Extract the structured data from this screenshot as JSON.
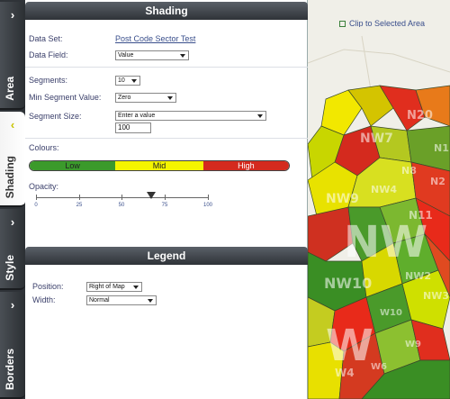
{
  "tabs": [
    {
      "label": "Area",
      "active": false
    },
    {
      "label": "Shading",
      "active": true
    },
    {
      "label": "Style",
      "active": false
    },
    {
      "label": "Borders",
      "active": false
    }
  ],
  "shading": {
    "title": "Shading",
    "dataset_label": "Data Set:",
    "dataset_value": "Post Code Sector Test",
    "datafield_label": "Data Field:",
    "datafield_value": "Value",
    "segments_label": "Segments:",
    "segments_value": "10",
    "min_segment_label": "Min Segment Value:",
    "min_segment_value": "Zero",
    "segment_size_label": "Segment Size:",
    "segment_size_select": "Enter a value",
    "segment_size_value": "100",
    "colours_label": "Colours:",
    "colours": {
      "low": "Low",
      "mid": "Mid",
      "high": "High",
      "low_color": "#3b9a2b",
      "mid_color": "#f5f500",
      "high_color": "#d42a1e"
    },
    "opacity_label": "Opacity:",
    "opacity_ticks": [
      "0",
      "25",
      "50",
      "75",
      "100"
    ],
    "opacity_value": 67
  },
  "legend": {
    "title": "Legend",
    "position_label": "Position:",
    "position_value": "Right of Map",
    "width_label": "Width:",
    "width_value": "Normal"
  },
  "map": {
    "clip_label": "Clip to Selected Area",
    "labels": [
      "N20",
      "NW7",
      "N8",
      "NW9",
      "NW4",
      "NW",
      "N11",
      "NW2",
      "NW10",
      "NW3",
      "W10",
      "W",
      "W9",
      "W6",
      "W4",
      "N2",
      "N1"
    ]
  }
}
